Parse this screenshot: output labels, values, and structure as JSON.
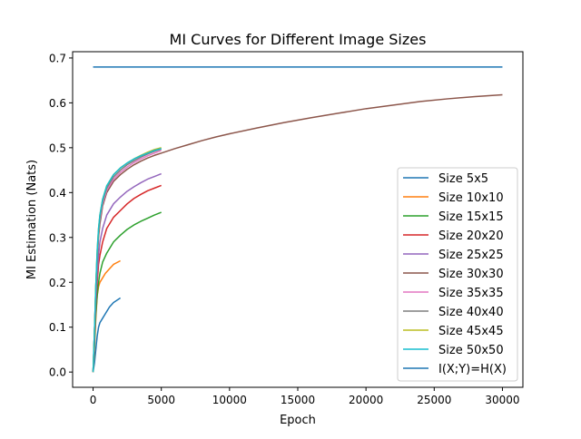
{
  "chart_data": {
    "type": "line",
    "title": "MI Curves for Different Image Sizes",
    "xlabel": "Epoch",
    "ylabel": "MI Estimation (Nats)",
    "xlim": [
      -1500,
      31500
    ],
    "ylim": [
      -0.034,
      0.714
    ],
    "xticks": [
      0,
      5000,
      10000,
      15000,
      20000,
      25000,
      30000
    ],
    "xtick_labels": [
      "0",
      "5000",
      "10000",
      "15000",
      "20000",
      "25000",
      "30000"
    ],
    "yticks": [
      0.0,
      0.1,
      0.2,
      0.3,
      0.4,
      0.5,
      0.6,
      0.7
    ],
    "ytick_labels": [
      "0.0",
      "0.1",
      "0.2",
      "0.3",
      "0.4",
      "0.5",
      "0.6",
      "0.7"
    ],
    "grid": false,
    "legend_position": "lower-right",
    "series": [
      {
        "name": "Size 5x5",
        "color": "#1f77b4",
        "x": [
          0,
          100,
          200,
          300,
          400,
          500,
          700,
          900,
          1200,
          1500,
          2000
        ],
        "y": [
          0.0,
          0.02,
          0.05,
          0.08,
          0.1,
          0.11,
          0.12,
          0.13,
          0.145,
          0.155,
          0.165
        ]
      },
      {
        "name": "Size 10x10",
        "color": "#ff7f0e",
        "x": [
          0,
          100,
          200,
          300,
          400,
          500,
          700,
          900,
          1200,
          1500,
          2000
        ],
        "y": [
          0.0,
          0.05,
          0.12,
          0.17,
          0.19,
          0.2,
          0.21,
          0.22,
          0.23,
          0.24,
          0.248
        ]
      },
      {
        "name": "Size 15x15",
        "color": "#2ca02c",
        "x": [
          0,
          100,
          200,
          300,
          400,
          500,
          700,
          1000,
          1500,
          2000,
          2500,
          3000,
          3500,
          4000,
          4500,
          5000
        ],
        "y": [
          0.0,
          0.06,
          0.13,
          0.17,
          0.2,
          0.22,
          0.245,
          0.265,
          0.29,
          0.305,
          0.318,
          0.328,
          0.336,
          0.343,
          0.35,
          0.356
        ]
      },
      {
        "name": "Size 20x20",
        "color": "#d62728",
        "x": [
          0,
          100,
          200,
          300,
          400,
          500,
          700,
          1000,
          1500,
          2000,
          2500,
          3000,
          3500,
          4000,
          4500,
          5000
        ],
        "y": [
          0.0,
          0.07,
          0.15,
          0.2,
          0.24,
          0.26,
          0.29,
          0.32,
          0.345,
          0.36,
          0.375,
          0.387,
          0.396,
          0.404,
          0.41,
          0.416
        ]
      },
      {
        "name": "Size 25x25",
        "color": "#9467bd",
        "x": [
          0,
          100,
          200,
          300,
          400,
          500,
          700,
          1000,
          1500,
          2000,
          2500,
          3000,
          3500,
          4000,
          4500,
          5000
        ],
        "y": [
          0.0,
          0.08,
          0.16,
          0.22,
          0.26,
          0.29,
          0.32,
          0.35,
          0.375,
          0.39,
          0.403,
          0.413,
          0.422,
          0.43,
          0.436,
          0.442
        ]
      },
      {
        "name": "Size 30x30",
        "color": "#8c564b",
        "x": [
          0,
          100,
          200,
          300,
          400,
          500,
          700,
          1000,
          1500,
          2000,
          2500,
          3000,
          3500,
          4000,
          4500,
          5000,
          6000,
          7000,
          8000,
          9000,
          10000,
          12000,
          14000,
          16000,
          18000,
          20000,
          22000,
          24000,
          26000,
          28000,
          30000
        ],
        "y": [
          0.0,
          0.09,
          0.18,
          0.25,
          0.3,
          0.33,
          0.37,
          0.4,
          0.425,
          0.44,
          0.452,
          0.462,
          0.47,
          0.477,
          0.483,
          0.488,
          0.498,
          0.507,
          0.516,
          0.524,
          0.531,
          0.544,
          0.556,
          0.567,
          0.577,
          0.587,
          0.595,
          0.603,
          0.609,
          0.614,
          0.618
        ]
      },
      {
        "name": "Size 35x35",
        "color": "#e377c2",
        "x": [
          0,
          100,
          200,
          300,
          400,
          500,
          700,
          1000,
          1500,
          2000,
          2500,
          3000,
          3500,
          4000,
          4500,
          5000
        ],
        "y": [
          0.0,
          0.09,
          0.19,
          0.26,
          0.31,
          0.34,
          0.375,
          0.405,
          0.43,
          0.445,
          0.457,
          0.467,
          0.475,
          0.482,
          0.488,
          0.494
        ]
      },
      {
        "name": "Size 40x40",
        "color": "#7f7f7f",
        "x": [
          0,
          100,
          200,
          300,
          400,
          500,
          700,
          1000,
          1500,
          2000,
          2500,
          3000,
          3500,
          4000,
          4500,
          5000
        ],
        "y": [
          0.0,
          0.09,
          0.19,
          0.26,
          0.31,
          0.345,
          0.38,
          0.41,
          0.435,
          0.45,
          0.462,
          0.471,
          0.479,
          0.486,
          0.492,
          0.497
        ]
      },
      {
        "name": "Size 45x45",
        "color": "#bcbd22",
        "x": [
          0,
          100,
          200,
          300,
          400,
          500,
          700,
          1000,
          1500,
          2000,
          2500,
          3000,
          3500,
          4000,
          4500,
          5000
        ],
        "y": [
          0.0,
          0.09,
          0.19,
          0.27,
          0.32,
          0.35,
          0.385,
          0.415,
          0.44,
          0.455,
          0.466,
          0.475,
          0.483,
          0.49,
          0.496,
          0.5
        ]
      },
      {
        "name": "Size 50x50",
        "color": "#17becf",
        "x": [
          0,
          100,
          200,
          300,
          400,
          500,
          700,
          1000,
          1500,
          2000,
          2500,
          3000,
          3500,
          4000,
          4500,
          5000
        ],
        "y": [
          0.0,
          0.09,
          0.19,
          0.27,
          0.32,
          0.35,
          0.385,
          0.415,
          0.44,
          0.455,
          0.466,
          0.475,
          0.482,
          0.488,
          0.494,
          0.498
        ]
      },
      {
        "name": "I(X;Y)=H(X)",
        "color": "#1f77b4",
        "x": [
          0,
          30000
        ],
        "y": [
          0.68,
          0.68
        ]
      }
    ]
  }
}
